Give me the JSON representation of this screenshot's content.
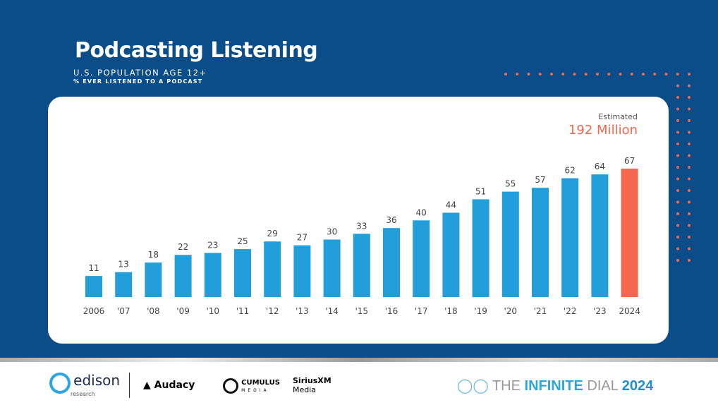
{
  "header": {
    "title": "Podcasting Listening",
    "subtitle": "U.S. POPULATION AGE 12+",
    "subtitle2": "% EVER LISTENED TO A PODCAST"
  },
  "callout": {
    "label": "Estimated",
    "value": "192 Million"
  },
  "colors": {
    "background": "#0b4d89",
    "bar": "#229fda",
    "highlight": "#f4664d"
  },
  "chart_data": {
    "type": "bar",
    "categories": [
      "2006",
      "'07",
      "'08",
      "'09",
      "'10",
      "'11",
      "'12",
      "'13",
      "'14",
      "'15",
      "'16",
      "'17",
      "'18",
      "'19",
      "'20",
      "'21",
      "'22",
      "'23",
      "2024"
    ],
    "values": [
      11,
      13,
      18,
      22,
      23,
      25,
      29,
      27,
      30,
      33,
      36,
      40,
      44,
      51,
      55,
      57,
      62,
      64,
      67
    ],
    "highlight_index": 18,
    "ylim": [
      0,
      67
    ]
  },
  "footer": {
    "edison": "edison",
    "edison_sub": "research",
    "audacy": "Audacy",
    "cumulus": "CUMULUS",
    "cumulus_sub": "MEDIA",
    "sirius": "SiriusXM",
    "sirius_sub": "Media",
    "dial_the": "THE ",
    "dial_infinite": "INFINITE",
    "dial_dial": " DIAL",
    "dial_year": "2024"
  }
}
